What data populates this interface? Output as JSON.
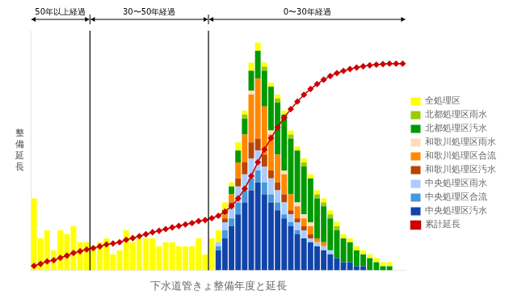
{
  "chart_data": {
    "type": "bar",
    "x_label": "下水道管きょ整備年度と延長",
    "y_label": "整\n備\n延\n長",
    "categories": [
      null,
      null,
      null,
      null,
      null,
      null,
      null,
      null,
      null,
      null,
      null,
      null,
      null,
      null,
      null,
      null,
      null,
      null,
      null,
      null,
      null,
      null,
      null,
      null,
      null,
      null,
      null,
      null,
      null,
      null,
      null,
      null,
      null,
      null,
      null,
      null,
      null,
      null,
      null,
      null,
      null,
      null,
      null,
      null,
      null,
      null,
      null,
      null,
      null,
      null,
      null,
      null,
      null,
      null,
      null,
      null,
      null
    ],
    "stacked": true,
    "grid": false,
    "tick_labels": false,
    "legend": "right",
    "ylim": [
      0,
      60
    ],
    "annotations": [
      {
        "text": "50年以上経過",
        "from": 0,
        "to": 8
      },
      {
        "text": "30〜50年経過",
        "from": 9,
        "to": 26
      },
      {
        "text": "0〜30年経過",
        "from": 27,
        "to": 56
      }
    ],
    "series": [
      {
        "name": "中央処理区汚水",
        "color": "#1144AA",
        "values": [
          0,
          0,
          0,
          0,
          0,
          0,
          0,
          0,
          0,
          0,
          0,
          0,
          0,
          0,
          0,
          0,
          0,
          0,
          0,
          0,
          0,
          0,
          0,
          0,
          0,
          0,
          0,
          0,
          5,
          8,
          11,
          14,
          17,
          20,
          22,
          19,
          17,
          15,
          13,
          11,
          9,
          8,
          7,
          6,
          5,
          4,
          3,
          2,
          2,
          1,
          1,
          0,
          0,
          0,
          0,
          0,
          0
        ]
      },
      {
        "name": "中央処理区合流",
        "color": "#4499DD",
        "values": [
          0,
          0,
          0,
          0,
          0,
          0,
          0,
          0,
          0,
          0,
          0,
          0,
          0,
          0,
          0,
          0,
          0,
          0,
          0,
          0,
          0,
          0,
          0,
          0,
          0,
          0,
          0,
          0,
          1,
          2,
          2,
          3,
          3,
          3,
          3,
          3,
          2,
          2,
          1,
          1,
          1,
          0,
          0,
          0,
          0,
          0,
          0,
          0,
          0,
          0,
          0,
          0,
          0,
          0,
          0,
          0,
          0
        ]
      },
      {
        "name": "中央処理区雨水",
        "color": "#AACCFF",
        "values": [
          0,
          0,
          0,
          0,
          0,
          0,
          0,
          0,
          0,
          0,
          0,
          0,
          0,
          0,
          0,
          0,
          0,
          0,
          0,
          0,
          0,
          0,
          0,
          0,
          0,
          0,
          0,
          0,
          1,
          2,
          3,
          4,
          4,
          5,
          5,
          4,
          4,
          3,
          3,
          2,
          2,
          2,
          1,
          1,
          1,
          1,
          0,
          0,
          0,
          0,
          0,
          0,
          0,
          0,
          0,
          0,
          0
        ]
      },
      {
        "name": "和歌川処理区汚水",
        "color": "#BB4400",
        "values": [
          0,
          0,
          0,
          0,
          0,
          0,
          0,
          0,
          0,
          0,
          0,
          0,
          0,
          0,
          0,
          0,
          0,
          0,
          0,
          0,
          0,
          0,
          0,
          0,
          0,
          0,
          0,
          0,
          0,
          1,
          1,
          2,
          3,
          4,
          3,
          3,
          2,
          2,
          2,
          1,
          1,
          1,
          1,
          0,
          0,
          0,
          0,
          0,
          0,
          0,
          0,
          0,
          0,
          0,
          0,
          0,
          0
        ]
      },
      {
        "name": "和歌川処理区合流",
        "color": "#FF8800",
        "values": [
          0,
          0,
          0,
          0,
          0,
          0,
          0,
          0,
          0,
          0,
          0,
          0,
          0,
          0,
          0,
          0,
          0,
          0,
          0,
          0,
          0,
          0,
          0,
          0,
          0,
          0,
          0,
          0,
          0,
          1,
          2,
          4,
          7,
          12,
          15,
          12,
          9,
          7,
          5,
          4,
          3,
          2,
          2,
          1,
          1,
          0,
          0,
          0,
          0,
          0,
          0,
          0,
          0,
          0,
          0,
          0,
          0
        ]
      },
      {
        "name": "和歌川処理区雨水",
        "color": "#FFDDBB",
        "values": [
          0,
          0,
          0,
          0,
          0,
          0,
          0,
          0,
          0,
          0,
          0,
          0,
          0,
          0,
          0,
          0,
          0,
          0,
          0,
          0,
          0,
          0,
          0,
          0,
          0,
          0,
          0,
          0,
          0,
          0,
          0,
          0,
          0,
          1,
          0,
          0,
          1,
          0,
          1,
          0,
          1,
          1,
          1,
          0,
          0,
          0,
          0,
          0,
          0,
          0,
          0,
          0,
          0,
          0,
          0,
          0,
          0
        ]
      },
      {
        "name": "北都処理区汚水",
        "color": "#009900",
        "values": [
          0,
          0,
          0,
          0,
          0,
          0,
          0,
          0,
          0,
          0,
          0,
          0,
          0,
          0,
          0,
          0,
          0,
          0,
          0,
          0,
          0,
          0,
          0,
          0,
          0,
          0,
          0,
          0,
          0,
          1,
          2,
          3,
          4,
          5,
          7,
          9,
          11,
          13,
          14,
          14,
          13,
          12,
          11,
          10,
          9,
          8,
          7,
          6,
          5,
          4,
          3,
          3,
          2,
          1,
          1,
          0,
          0
        ]
      },
      {
        "name": "北都処理区雨水",
        "color": "#99CC00",
        "values": [
          0,
          0,
          0,
          0,
          0,
          0,
          0,
          0,
          0,
          0,
          0,
          0,
          0,
          0,
          0,
          0,
          0,
          0,
          0,
          0,
          0,
          0,
          0,
          0,
          0,
          0,
          0,
          0,
          0,
          0,
          0,
          0,
          1,
          0,
          0,
          1,
          0,
          1,
          0,
          1,
          0,
          1,
          0,
          1,
          1,
          1,
          1,
          0,
          0,
          0,
          0,
          0,
          0,
          0,
          0,
          0,
          0
        ]
      },
      {
        "name": "全処理区",
        "color": "#FFFF00",
        "values": [
          18,
          8,
          10,
          5,
          10,
          9,
          11,
          7,
          7,
          6,
          7,
          8,
          4,
          5,
          10,
          7,
          8,
          8,
          8,
          6,
          7,
          7,
          6,
          6,
          6,
          8,
          4,
          8,
          3,
          2,
          1,
          2,
          1,
          2,
          2,
          1,
          1,
          1,
          1,
          1,
          1,
          1,
          1,
          1,
          1,
          1,
          1,
          1,
          1,
          1,
          1,
          1,
          1,
          1,
          1,
          0,
          0
        ]
      },
      {
        "name": "累計延長",
        "type": "line",
        "color": "#CC0000",
        "marker": "diamond",
        "values": [
          1.097,
          1.585,
          2.194,
          2.499,
          3.109,
          3.657,
          4.328,
          4.754,
          5.181,
          5.547,
          5.973,
          6.461,
          6.705,
          7.01,
          7.619,
          8.046,
          8.534,
          9.021,
          9.509,
          9.875,
          10.301,
          10.728,
          11.094,
          11.459,
          11.825,
          12.313,
          12.557,
          13.044,
          13.654,
          14.69,
          16.031,
          17.981,
          20.42,
          23.589,
          27.064,
          30.233,
          33.098,
          35.78,
          38.218,
          40.352,
          42.241,
          43.948,
          45.411,
          46.63,
          47.727,
          48.641,
          49.373,
          49.921,
          50.409,
          50.775,
          51.08,
          51.323,
          51.506,
          51.628,
          51.75,
          51.75,
          51.75
        ]
      }
    ]
  }
}
